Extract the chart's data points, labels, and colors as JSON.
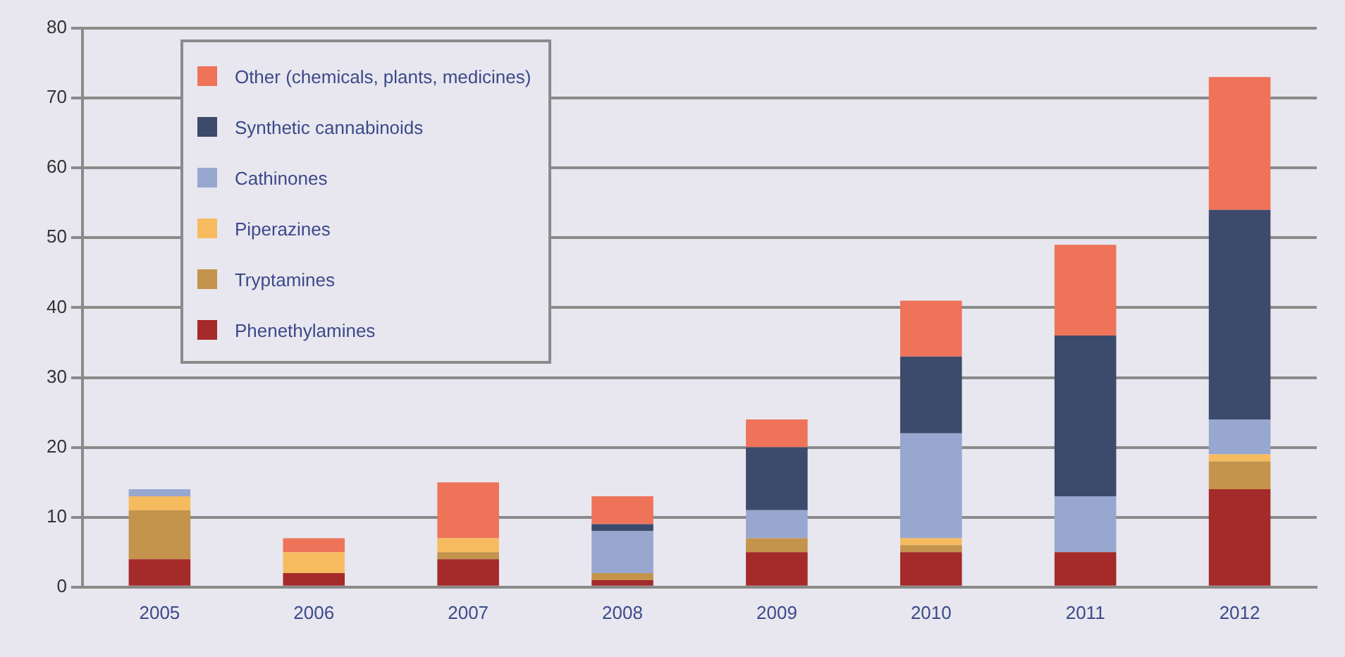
{
  "chart_data": {
    "type": "bar",
    "stacked": true,
    "categories": [
      "2005",
      "2006",
      "2007",
      "2008",
      "2009",
      "2010",
      "2011",
      "2012"
    ],
    "series": [
      {
        "name": "Phenethylamines",
        "color": "#a52a2a",
        "values": [
          4,
          2,
          4,
          1,
          5,
          5,
          5,
          14
        ]
      },
      {
        "name": "Tryptamines",
        "color": "#c4944d",
        "values": [
          7,
          0,
          1,
          1,
          2,
          1,
          0,
          4
        ]
      },
      {
        "name": "Piperazines",
        "color": "#f6bb5f",
        "values": [
          2,
          3,
          2,
          0,
          0,
          1,
          0,
          1
        ]
      },
      {
        "name": "Cathinones",
        "color": "#97a7cf",
        "values": [
          1,
          0,
          0,
          6,
          4,
          15,
          8,
          5
        ]
      },
      {
        "name": "Synthetic cannabinoids",
        "color": "#3c4a6b",
        "values": [
          0,
          0,
          0,
          1,
          9,
          11,
          23,
          30
        ]
      },
      {
        "name": "Other (chemicals, plants, medicines)",
        "color": "#ee7359",
        "values": [
          0,
          2,
          8,
          4,
          4,
          8,
          13,
          19
        ]
      }
    ],
    "ylim": [
      0,
      80
    ],
    "yticks": [
      0,
      10,
      20,
      30,
      40,
      50,
      60,
      70,
      80
    ],
    "grid": "y",
    "legend": "top left"
  }
}
